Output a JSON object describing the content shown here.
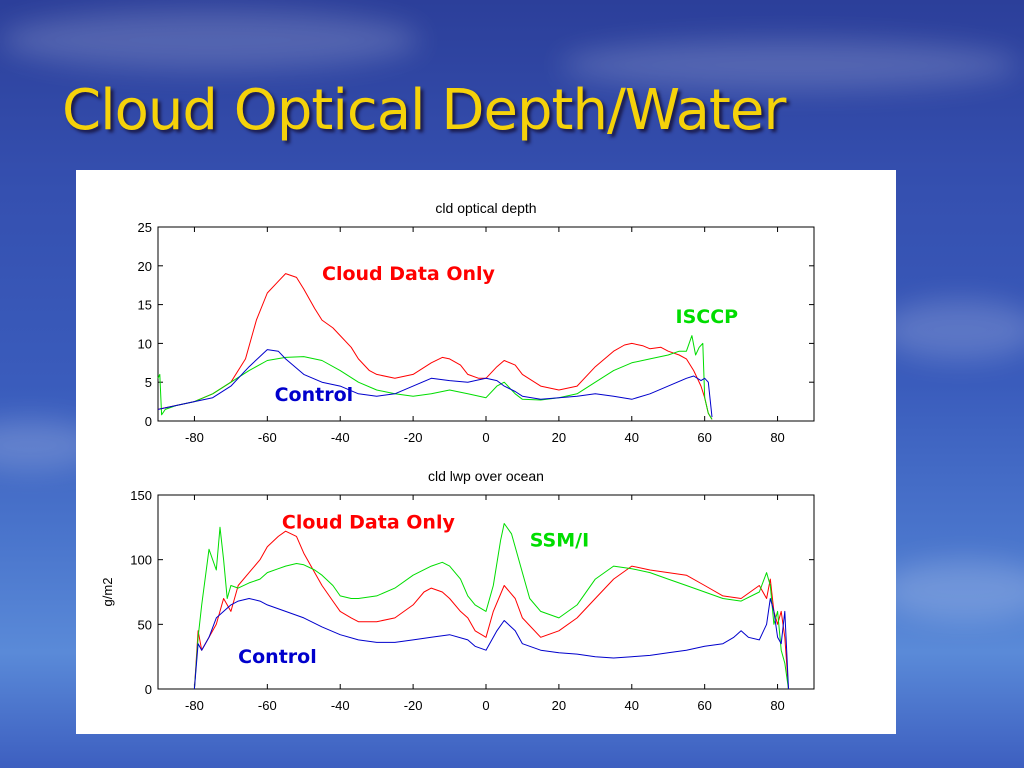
{
  "slide": {
    "title": "Cloud Optical Depth/Water"
  },
  "colors": {
    "cloud_data_only": "#ff0000",
    "observed": "#00dd00",
    "control": "#0000cc",
    "title": "#f5d20a"
  },
  "chart_data": [
    {
      "type": "line",
      "title": "cld optical depth",
      "xlabel": "",
      "ylabel": "",
      "xlim": [
        -90,
        90
      ],
      "ylim": [
        0,
        25
      ],
      "xticks": [
        -80,
        -60,
        -40,
        -20,
        0,
        20,
        40,
        60,
        80
      ],
      "yticks": [
        0,
        5,
        10,
        15,
        20,
        25
      ],
      "grid": false,
      "annotations": [
        {
          "text": "Cloud Data Only",
          "series": "Cloud Data Only",
          "x": -45,
          "y": 18.2
        },
        {
          "text": "ISCCP",
          "series": "ISCCP",
          "x": 52,
          "y": 12.6
        },
        {
          "text": "Control",
          "series": "Control",
          "x": -58,
          "y": 2.6
        }
      ],
      "series": [
        {
          "name": "Cloud Data Only",
          "color": "#ff0000",
          "x": [
            -90,
            -85,
            -80,
            -75,
            -70,
            -66,
            -63,
            -60,
            -57,
            -55,
            -52,
            -50,
            -47,
            -45,
            -42,
            -40,
            -37,
            -35,
            -32,
            -30,
            -25,
            -20,
            -15,
            -12,
            -10,
            -7,
            -5,
            -2,
            0,
            3,
            5,
            8,
            10,
            15,
            20,
            25,
            30,
            35,
            38,
            40,
            43,
            45,
            48,
            50,
            53,
            55,
            57,
            59,
            60,
            61,
            62
          ],
          "y": [
            1.5,
            2.0,
            2.5,
            3.5,
            5.0,
            8.0,
            13.0,
            16.5,
            18.0,
            19.0,
            18.5,
            17.0,
            14.5,
            13.0,
            12.0,
            11.0,
            9.5,
            8.0,
            6.5,
            6.0,
            5.5,
            6.0,
            7.5,
            8.2,
            8.0,
            7.2,
            6.0,
            5.5,
            5.5,
            7.0,
            7.8,
            7.2,
            6.0,
            4.5,
            4.0,
            4.5,
            7.0,
            9.0,
            9.8,
            10.0,
            9.7,
            9.3,
            9.5,
            9.0,
            8.5,
            8.0,
            6.5,
            4.5,
            3.0,
            1.0,
            0.2
          ]
        },
        {
          "name": "ISCCP",
          "color": "#00dd00",
          "x": [
            -90,
            -89.5,
            -89,
            -88,
            -85,
            -80,
            -75,
            -70,
            -65,
            -60,
            -55,
            -50,
            -45,
            -40,
            -35,
            -30,
            -25,
            -20,
            -15,
            -10,
            -5,
            0,
            3,
            5,
            8,
            10,
            15,
            20,
            25,
            30,
            35,
            40,
            45,
            50,
            53,
            55,
            56.5,
            57.5,
            58.5,
            59.5,
            60,
            61,
            62
          ],
          "y": [
            5.5,
            6.0,
            0.8,
            1.5,
            2.0,
            2.5,
            3.5,
            5.0,
            6.5,
            7.8,
            8.2,
            8.3,
            7.8,
            6.5,
            5.0,
            4.0,
            3.5,
            3.2,
            3.5,
            4.0,
            3.5,
            3.0,
            4.5,
            5.0,
            3.5,
            2.8,
            2.7,
            3.0,
            3.5,
            5.0,
            6.5,
            7.5,
            8.0,
            8.5,
            9.0,
            9.0,
            11.0,
            8.5,
            9.5,
            10.0,
            3.0,
            1.0,
            0.2
          ]
        },
        {
          "name": "Control",
          "color": "#0000cc",
          "x": [
            -90,
            -85,
            -80,
            -75,
            -70,
            -65,
            -60,
            -57,
            -55,
            -50,
            -45,
            -40,
            -35,
            -30,
            -25,
            -20,
            -15,
            -10,
            -5,
            0,
            3,
            5,
            8,
            10,
            15,
            20,
            25,
            30,
            35,
            40,
            45,
            50,
            55,
            57,
            59,
            60,
            61,
            62
          ],
          "y": [
            1.5,
            2.0,
            2.5,
            3.0,
            4.5,
            7.0,
            9.2,
            9.0,
            8.0,
            6.0,
            5.0,
            4.5,
            3.5,
            3.2,
            3.5,
            4.5,
            5.5,
            5.2,
            5.0,
            5.5,
            5.2,
            4.5,
            3.8,
            3.2,
            2.8,
            3.0,
            3.2,
            3.5,
            3.2,
            2.8,
            3.5,
            4.5,
            5.5,
            5.8,
            5.2,
            5.5,
            5.0,
            0.5
          ]
        }
      ]
    },
    {
      "type": "line",
      "title": "cld lwp over ocean",
      "xlabel": "",
      "ylabel": "g/m2",
      "xlim": [
        -90,
        90
      ],
      "ylim": [
        0,
        150
      ],
      "xticks": [
        -80,
        -60,
        -40,
        -20,
        0,
        20,
        40,
        60,
        80
      ],
      "yticks": [
        0,
        50,
        100,
        150
      ],
      "grid": false,
      "annotations": [
        {
          "text": "Cloud Data Only",
          "series": "Cloud Data Only",
          "x": -56,
          "y": 124
        },
        {
          "text": "SSM/I",
          "series": "SSM/I",
          "x": 12,
          "y": 110
        },
        {
          "text": "Control",
          "series": "Control",
          "x": -68,
          "y": 20
        }
      ],
      "series": [
        {
          "name": "Cloud Data Only",
          "color": "#ff0000",
          "x": [
            -80,
            -79,
            -78,
            -76,
            -74,
            -72,
            -70,
            -68,
            -65,
            -62,
            -60,
            -57,
            -55,
            -52,
            -50,
            -47,
            -45,
            -42,
            -40,
            -37,
            -35,
            -30,
            -25,
            -20,
            -17,
            -15,
            -12,
            -10,
            -7,
            -5,
            -3,
            0,
            2,
            5,
            8,
            10,
            15,
            20,
            25,
            30,
            35,
            40,
            45,
            50,
            55,
            60,
            65,
            70,
            75,
            77,
            78,
            79,
            80,
            81,
            82,
            83
          ],
          "y": [
            0,
            45,
            30,
            40,
            50,
            70,
            60,
            80,
            90,
            100,
            110,
            118,
            122,
            118,
            105,
            90,
            80,
            68,
            60,
            55,
            52,
            52,
            55,
            65,
            75,
            78,
            75,
            70,
            60,
            55,
            45,
            40,
            60,
            80,
            70,
            55,
            40,
            45,
            55,
            70,
            85,
            95,
            92,
            90,
            88,
            80,
            72,
            70,
            80,
            70,
            85,
            60,
            50,
            60,
            40,
            0
          ]
        },
        {
          "name": "SSM/I",
          "color": "#00dd00",
          "x": [
            -80,
            -79,
            -78,
            -76,
            -74,
            -73,
            -72,
            -71,
            -70,
            -68,
            -65,
            -62,
            -60,
            -57,
            -55,
            -52,
            -50,
            -47,
            -45,
            -42,
            -40,
            -37,
            -35,
            -30,
            -25,
            -20,
            -15,
            -12,
            -10,
            -7,
            -5,
            -3,
            0,
            2,
            4,
            5,
            7,
            10,
            12,
            15,
            20,
            25,
            30,
            35,
            40,
            45,
            50,
            55,
            60,
            65,
            70,
            75,
            77,
            78,
            79,
            80,
            81,
            82,
            83
          ],
          "y": [
            0,
            40,
            65,
            108,
            92,
            125,
            100,
            70,
            80,
            78,
            82,
            85,
            90,
            93,
            95,
            97,
            96,
            92,
            88,
            80,
            72,
            70,
            70,
            72,
            78,
            88,
            95,
            98,
            95,
            85,
            72,
            65,
            60,
            80,
            115,
            128,
            120,
            90,
            70,
            60,
            55,
            65,
            85,
            95,
            93,
            90,
            85,
            80,
            75,
            70,
            68,
            75,
            90,
            80,
            50,
            60,
            30,
            20,
            0
          ]
        },
        {
          "name": "Control",
          "color": "#0000cc",
          "x": [
            -80,
            -79,
            -78,
            -76,
            -74,
            -72,
            -70,
            -68,
            -65,
            -62,
            -60,
            -55,
            -50,
            -45,
            -40,
            -35,
            -30,
            -25,
            -20,
            -15,
            -10,
            -5,
            -3,
            0,
            3,
            5,
            8,
            10,
            15,
            20,
            25,
            30,
            35,
            40,
            45,
            50,
            55,
            60,
            65,
            68,
            70,
            72,
            75,
            77,
            78,
            79,
            80,
            81,
            82,
            83
          ],
          "y": [
            0,
            35,
            30,
            40,
            55,
            60,
            65,
            68,
            70,
            68,
            65,
            60,
            55,
            48,
            42,
            38,
            36,
            36,
            38,
            40,
            42,
            38,
            33,
            30,
            45,
            53,
            45,
            35,
            30,
            28,
            27,
            25,
            24,
            25,
            26,
            28,
            30,
            33,
            35,
            40,
            45,
            40,
            38,
            50,
            70,
            60,
            40,
            35,
            60,
            0
          ]
        }
      ]
    }
  ]
}
